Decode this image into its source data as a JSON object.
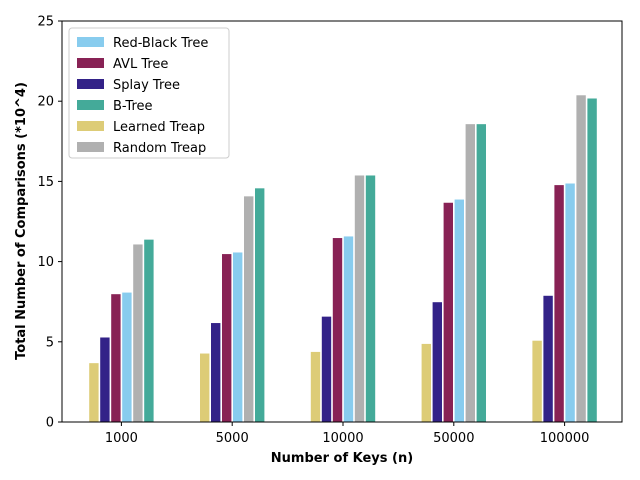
{
  "chart_data": {
    "type": "bar",
    "xlabel": "Number of Keys (n)",
    "ylabel": "Total Number of Comparisons (*10^4)",
    "categories": [
      "1000",
      "5000",
      "10000",
      "50000",
      "100000"
    ],
    "ylim": [
      0,
      25
    ],
    "yticks": [
      0,
      5,
      10,
      15,
      20,
      25
    ],
    "grid": false,
    "legend_position": "top-left",
    "legend_order": [
      "Red-Black Tree",
      "AVL Tree",
      "Splay Tree",
      "B-Tree",
      "Learned Treap",
      "Random Treap"
    ],
    "series": [
      {
        "name": "Learned Treap",
        "color": "#ddcc77",
        "values": [
          3.7,
          4.3,
          4.4,
          4.9,
          5.1
        ]
      },
      {
        "name": "Splay Tree",
        "color": "#332288",
        "values": [
          5.3,
          6.2,
          6.6,
          7.5,
          7.9
        ]
      },
      {
        "name": "AVL Tree",
        "color": "#882255",
        "values": [
          8.0,
          10.5,
          11.5,
          13.7,
          14.8
        ]
      },
      {
        "name": "Red-Black Tree",
        "color": "#88ccee",
        "values": [
          8.1,
          10.6,
          11.6,
          13.9,
          14.9
        ]
      },
      {
        "name": "Random Treap",
        "color": "#b0b0b0",
        "values": [
          11.1,
          14.1,
          15.4,
          18.6,
          20.4
        ]
      },
      {
        "name": "B-Tree",
        "color": "#44aa99",
        "values": [
          11.4,
          14.6,
          15.4,
          18.6,
          20.2
        ]
      }
    ]
  }
}
